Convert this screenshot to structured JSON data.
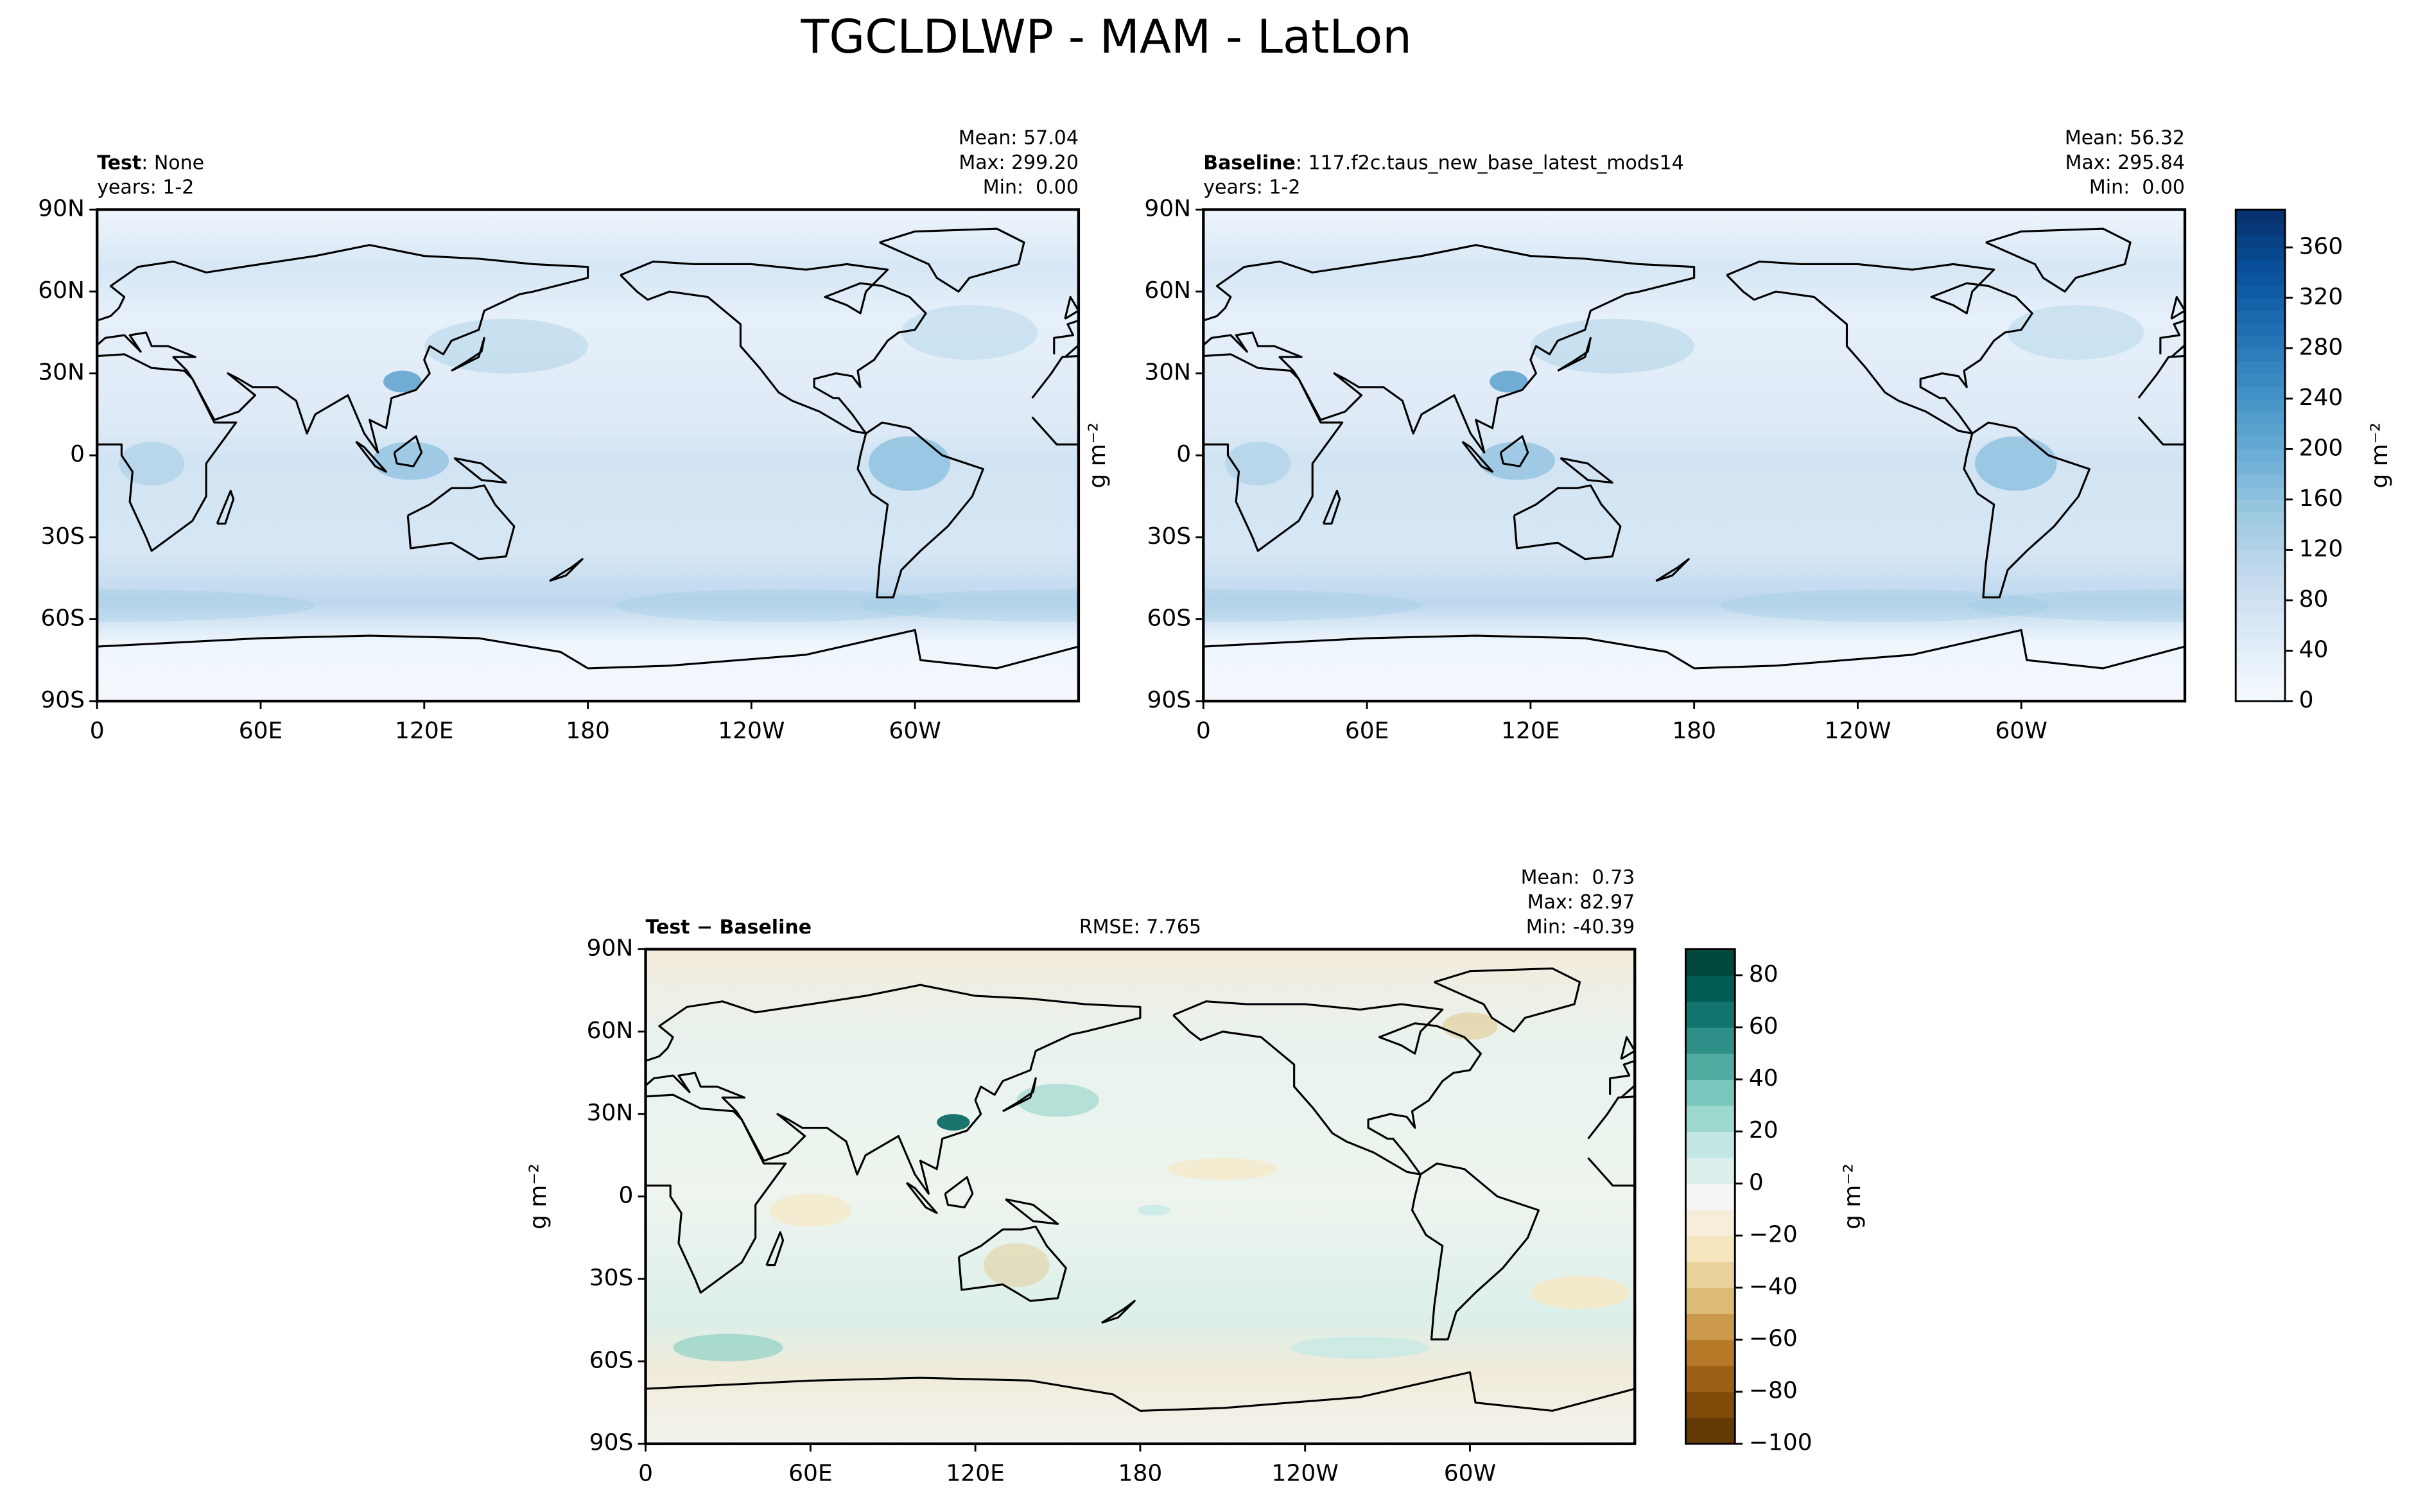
{
  "title": "TGCLDLWP - MAM - LatLon",
  "panels": [
    {
      "label": "Test",
      "name": ": None",
      "years": "years: 1-2",
      "stats": [
        "Mean: 57.04",
        "Max: 299.20",
        "Min:  0.00"
      ]
    },
    {
      "label": "Baseline",
      "name": ": 117.f2c.taus_new_base_latest_mods14",
      "years": "years: 1-2",
      "stats": [
        "Mean: 56.32",
        "Max: 295.84",
        "Min:  0.00"
      ],
      "ylabel": "g m⁻²"
    },
    {
      "label": "Test − Baseline",
      "rmse": "RMSE: 7.765",
      "stats": [
        "Mean:  0.73",
        "Max: 82.97",
        "Min: -40.39"
      ],
      "ylabel": "g m⁻²"
    }
  ],
  "lat_ticks": [
    {
      "value": 90,
      "label": "90N"
    },
    {
      "value": 60,
      "label": "60N"
    },
    {
      "value": 30,
      "label": "30N"
    },
    0,
    {
      "value": -30,
      "label": "30S"
    },
    {
      "value": -60,
      "label": "60S"
    },
    {
      "value": -90,
      "label": "90S"
    }
  ],
  "lon_ticks": [
    0,
    {
      "value": 60,
      "label": "60E"
    },
    {
      "value": 120,
      "label": "120E"
    },
    180,
    {
      "value": 240,
      "label": "120W"
    },
    {
      "value": 300,
      "label": "60W"
    }
  ],
  "colorbars": [
    {
      "lim": [
        0,
        390
      ],
      "ticks": [
        0,
        40,
        80,
        120,
        160,
        200,
        240,
        280,
        320,
        360
      ],
      "label": "g m⁻²"
    },
    {
      "lim": [
        -100,
        90
      ],
      "ticks": [
        {
          "value": -100,
          "label": "−100"
        },
        {
          "value": -80,
          "label": "−80"
        },
        {
          "value": -60,
          "label": "−60"
        },
        {
          "value": -40,
          "label": "−40"
        },
        {
          "value": -20,
          "label": "−20"
        },
        0,
        20,
        40,
        60,
        80
      ],
      "label": "g m⁻²"
    }
  ]
}
